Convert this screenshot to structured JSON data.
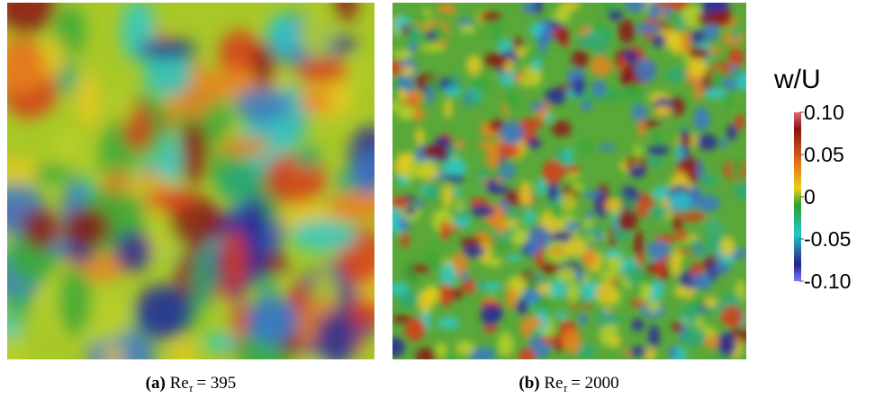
{
  "panels": [
    {
      "tag": "(a)",
      "symbol": "Re",
      "subscript": "τ",
      "relation": "= 395"
    },
    {
      "tag": "(b)",
      "symbol": "Re",
      "subscript": "τ",
      "relation": "= 2000"
    }
  ],
  "colorbar": {
    "title": "w/U",
    "lim": [
      -0.1,
      0.1
    ],
    "ticks": [
      {
        "value": 0.1,
        "label": "0.10"
      },
      0.05,
      0,
      -0.05,
      {
        "value": -0.1,
        "label": "-0.10"
      }
    ]
  }
}
